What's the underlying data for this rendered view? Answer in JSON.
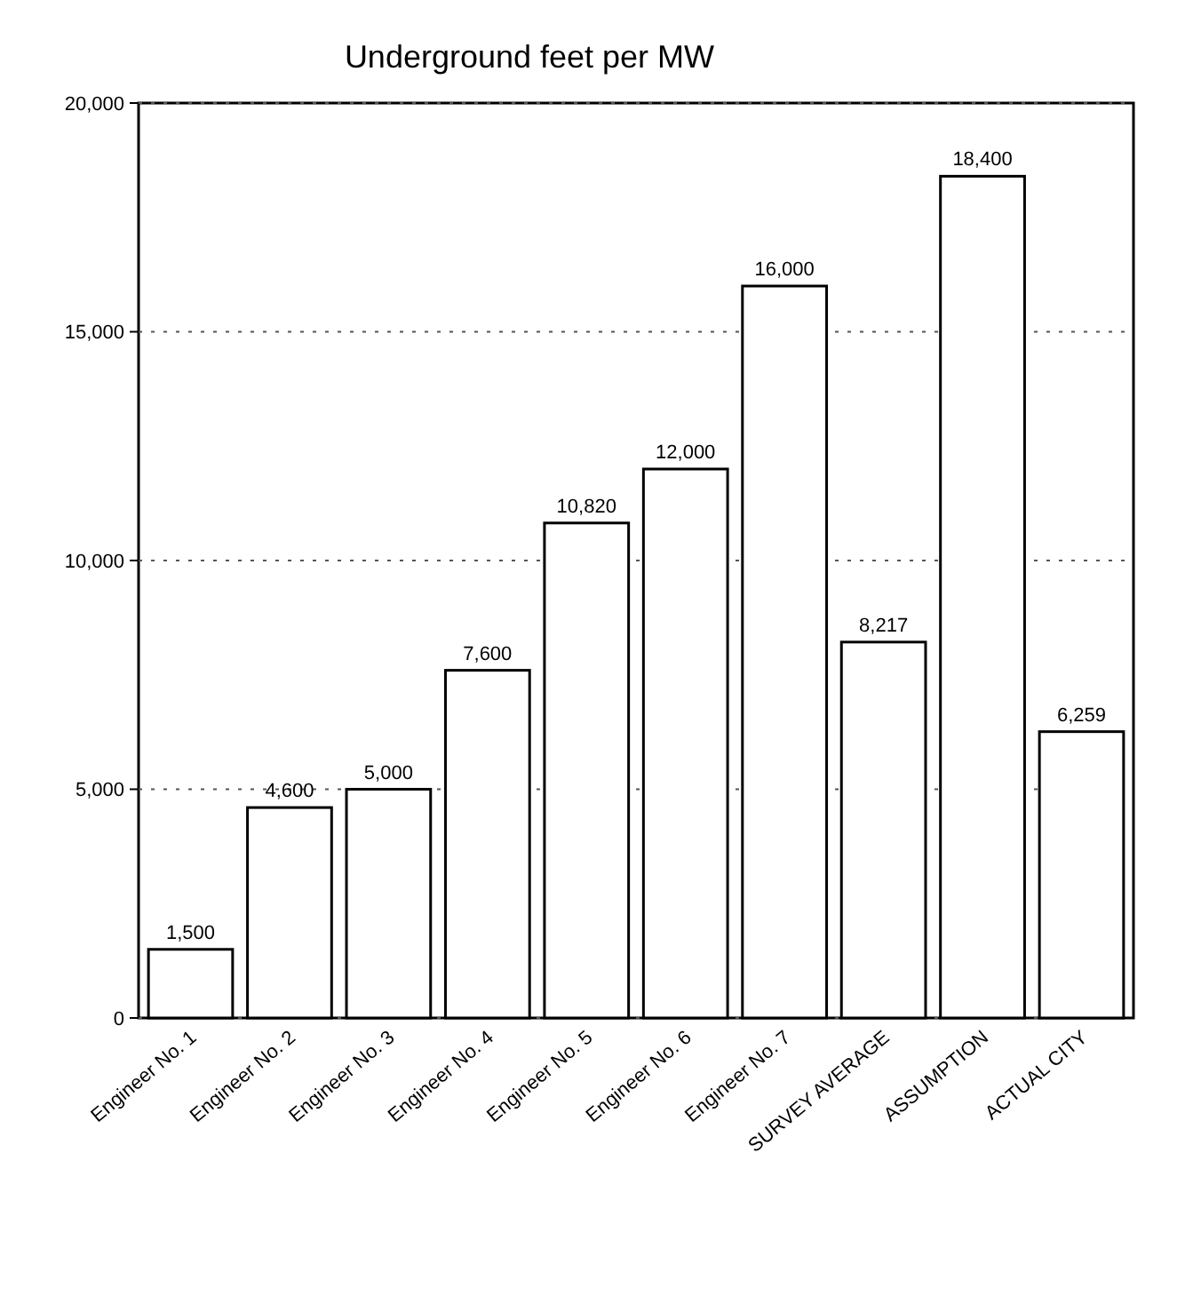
{
  "chart_data": {
    "type": "bar",
    "title": "Underground feet per MW",
    "categories": [
      "Engineer No. 1",
      "Engineer No. 2",
      "Engineer No. 3",
      "Engineer No. 4",
      "Engineer No. 5",
      "Engineer No. 6",
      "Engineer No. 7",
      "SURVEY AVERAGE",
      "ASSUMPTION",
      "ACTUAL CITY"
    ],
    "values": [
      1500,
      4600,
      5000,
      7600,
      10820,
      12000,
      16000,
      8217,
      18400,
      6259
    ],
    "value_labels": [
      "1,500",
      "4,600",
      "5,000",
      "7,600",
      "10,820",
      "12,000",
      "16,000",
      "8,217",
      "18,400",
      "6,259"
    ],
    "color": "#ffffff",
    "ylim": [
      0,
      20000
    ],
    "yticks": [
      {
        "value": 0,
        "label": "0"
      },
      {
        "value": 5000,
        "label": "5,000"
      },
      {
        "value": 10000,
        "label": "10,000"
      },
      {
        "value": 15000,
        "label": "15,000"
      },
      {
        "value": 20000,
        "label": "20,000"
      }
    ],
    "grid": "y"
  }
}
